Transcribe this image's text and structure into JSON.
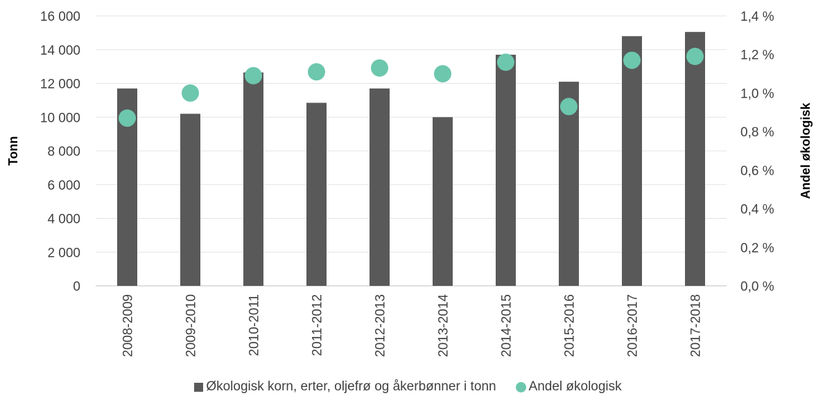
{
  "chart_data": {
    "type": "bar",
    "categories": [
      "2008-2009",
      "2009-2010",
      "2010-2011",
      "2011-2012",
      "2012-2013",
      "2013-2014",
      "2014-2015",
      "2015-2016",
      "2016-2017",
      "2017-2018"
    ],
    "series": [
      {
        "name": "Økologisk korn, erter, oljefrø og åkerbønner i tonn",
        "type": "bar",
        "axis": "left",
        "color": "#595959",
        "values": [
          11700,
          10200,
          12650,
          10850,
          11700,
          10000,
          13700,
          12100,
          14800,
          15050
        ]
      },
      {
        "name": "Andel økologisk",
        "type": "scatter",
        "axis": "right",
        "color": "#6cc7ad",
        "values": [
          0.87,
          1.0,
          1.09,
          1.11,
          1.13,
          1.1,
          1.16,
          0.93,
          1.17,
          1.19
        ]
      }
    ],
    "ylabel": "Tonn",
    "y2label": "Andel økologisk",
    "ylim": [
      0,
      16000
    ],
    "y2lim": [
      0,
      1.4
    ],
    "yticks": [
      "0",
      "2 000",
      "4 000",
      "6 000",
      "8 000",
      "10 000",
      "12 000",
      "14 000",
      "16 000"
    ],
    "y2ticks": [
      "0,0 %",
      "0,2 %",
      "0,4 %",
      "0,6 %",
      "0,8 %",
      "1,0 %",
      "1,2 %",
      "1,4 %"
    ],
    "grid": true,
    "legend_position": "bottom"
  }
}
